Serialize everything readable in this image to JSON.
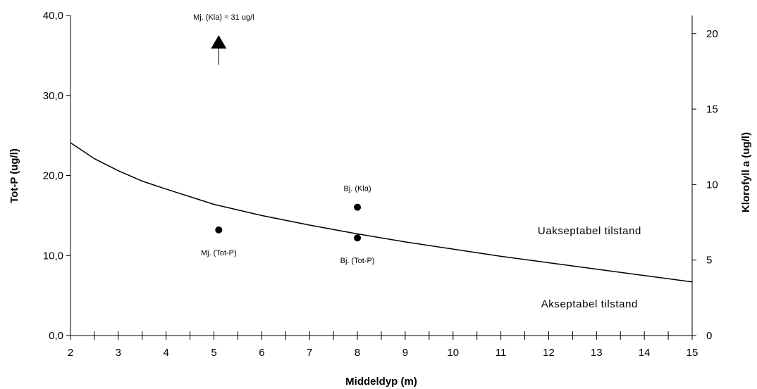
{
  "chart_data": {
    "type": "line",
    "xlabel": "Middeldyp (m)",
    "ylabel": "Tot-P (ug/l)",
    "y2label": "Klorofyll a (ug/l)",
    "xlim": [
      2,
      15
    ],
    "ylim": [
      0,
      40
    ],
    "y2lim": [
      0,
      21.2
    ],
    "x_ticks": [
      "2",
      "3",
      "4",
      "5",
      "6",
      "7",
      "8",
      "9",
      "10",
      "11",
      "12",
      "13",
      "14",
      "15"
    ],
    "y_ticks": [
      "0,0",
      "10,0",
      "20,0",
      "30,0",
      "40,0"
    ],
    "y2_ticks": [
      "0",
      "5",
      "10",
      "15",
      "20"
    ],
    "curve": {
      "x": [
        2,
        2.5,
        3,
        3.5,
        4,
        5,
        6,
        7,
        8,
        9,
        10,
        11,
        12,
        13,
        14,
        15
      ],
      "y": [
        24.1,
        22.1,
        20.6,
        19.3,
        18.3,
        16.4,
        15.0,
        13.8,
        12.7,
        11.7,
        10.8,
        9.9,
        9.1,
        8.3,
        7.5,
        6.7
      ]
    },
    "points": [
      {
        "label": "Mj. (Tot-P)",
        "x": 5.1,
        "y": 13.2,
        "axis": "left"
      },
      {
        "label": "Bj. (Tot-P)",
        "x": 8.0,
        "y": 12.2,
        "axis": "left"
      },
      {
        "label": "Bj. (Kla)",
        "x": 8.0,
        "y": 8.5,
        "axis": "right"
      }
    ],
    "arrow": {
      "label": "Mj. (Kla) = 31 ug/l",
      "x": 5.1
    },
    "regions": {
      "above": "Uakseptabel tilstand",
      "below": "Akseptabel tilstand"
    },
    "grid": false,
    "legend": "none"
  }
}
